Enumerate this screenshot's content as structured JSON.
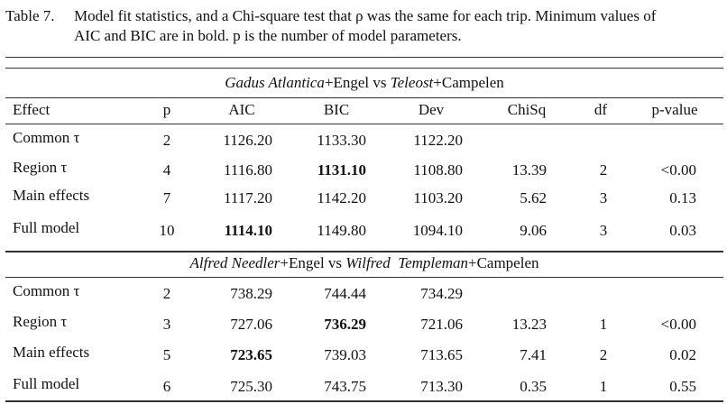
{
  "caption": {
    "label": "Table 7.",
    "lines": [
      "Model fit statistics, and a Chi-square test that ρ was the same for each trip. Minimum values of",
      "AIC and BIC are in bold. p is the number of model parameters."
    ]
  },
  "table": {
    "columns": [
      "Effect",
      "p",
      "AIC",
      "BIC",
      "Dev",
      "ChiSq",
      "df",
      "p-value"
    ],
    "sections": [
      {
        "title": [
          {
            "text": "Gadus Atlantica",
            "italic": true
          },
          {
            "text": "+Engel vs ",
            "italic": false
          },
          {
            "text": "Teleost",
            "italic": true
          },
          {
            "text": "+Campelen",
            "italic": false
          }
        ],
        "rows": [
          [
            "Common τ",
            "2",
            "1126.20",
            "1133.30",
            "1122.20"
          ],
          [
            "Region τ",
            "4",
            "1116.80",
            "1131.10",
            "1108.80",
            "13.39",
            "2",
            "<0.00"
          ],
          [
            "Main effects",
            "7",
            "1117.20",
            "1142.20",
            "1103.20",
            "5.62",
            "3",
            "0.13"
          ],
          [
            "Full model",
            "10",
            "1114.10",
            "1149.80",
            "1094.10",
            "9.06",
            "3",
            "0.03"
          ]
        ],
        "bold": [
          [
            1,
            3
          ],
          [
            3,
            2
          ]
        ]
      },
      {
        "title": [
          {
            "text": "Alfred Needler",
            "italic": true
          },
          {
            "text": "+Engel vs ",
            "italic": false
          },
          {
            "text": "Wilfred  Templeman",
            "italic": true
          },
          {
            "text": "+Campelen",
            "italic": false
          }
        ],
        "rows": [
          [
            "Common τ",
            "2",
            "738.29",
            "744.44",
            "734.29"
          ],
          [
            "Region τ",
            "3",
            "727.06",
            "736.29",
            "721.06",
            "13.23",
            "1",
            "<0.00"
          ],
          [
            "Main effects",
            "5",
            "723.65",
            "739.03",
            "713.65",
            "7.41",
            "2",
            "0.02"
          ],
          [
            "Full model",
            "6",
            "725.30",
            "743.75",
            "713.30",
            "0.35",
            "1",
            "0.55"
          ]
        ],
        "bold": [
          [
            1,
            3
          ],
          [
            2,
            2
          ]
        ]
      }
    ]
  }
}
